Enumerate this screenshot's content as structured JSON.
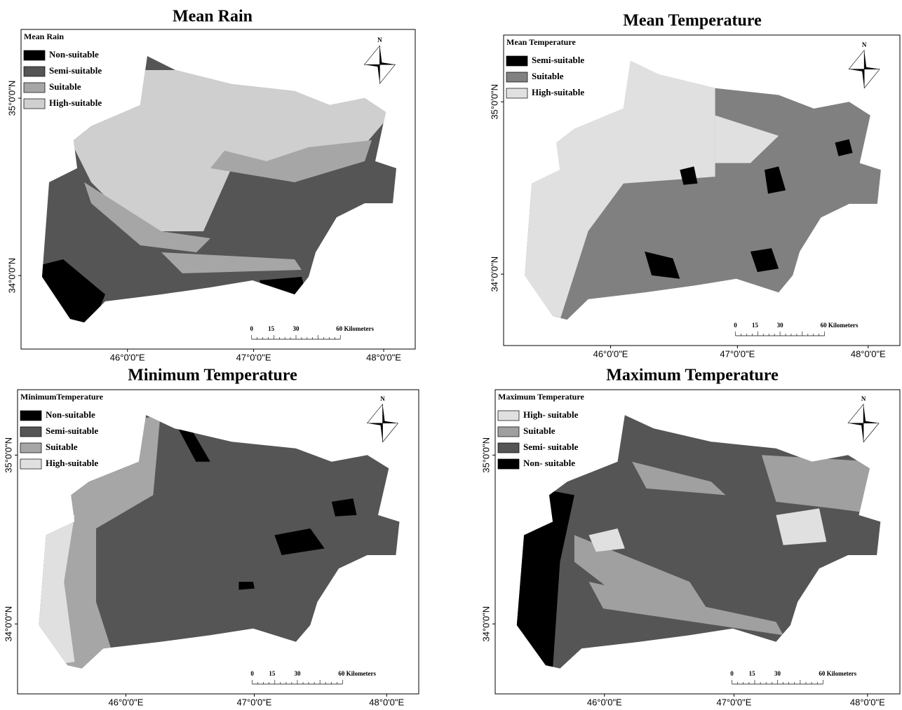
{
  "panels": [
    {
      "title": "Mean Rain",
      "legend": {
        "title": "Mean Rain",
        "items": [
          {
            "label": "Non-suitable",
            "color": "#000000"
          },
          {
            "label": "Semi-suitable",
            "color": "#555555"
          },
          {
            "label": "Suitable",
            "color": "#a6a6a6"
          },
          {
            "label": "High-suitable",
            "color": "#cfcfcf"
          }
        ]
      },
      "x_labels": [
        "46°0'0\"E",
        "47°0'0\"E",
        "48°0'0\"E"
      ],
      "y_labels": [
        "35°0'0\"N",
        "34°0'0\"N"
      ],
      "north": "N",
      "scale": [
        "0",
        "15",
        "30",
        "60 Kilometers"
      ]
    },
    {
      "title": "Mean Temperature",
      "legend": {
        "title": "Mean Temperature",
        "items": [
          {
            "label": "Semi-suitable",
            "color": "#000000"
          },
          {
            "label": "Suitable",
            "color": "#808080"
          },
          {
            "label": "High-suitable",
            "color": "#e0e0e0"
          }
        ]
      },
      "x_labels": [
        "46°0'0\"E",
        "47°0'0\"E",
        "48°0'0\"E"
      ],
      "y_labels": [
        "35°0'0\"N",
        "34°0'0\"N"
      ],
      "north": "N",
      "scale": [
        "0",
        "15",
        "30",
        "60 Kilometers"
      ]
    },
    {
      "title": "Minimum Temperature",
      "legend": {
        "title": "MinimumTemperature",
        "items": [
          {
            "label": "Non-suitable",
            "color": "#000000"
          },
          {
            "label": "Semi-suitable",
            "color": "#555555"
          },
          {
            "label": "Suitable",
            "color": "#a6a6a6"
          },
          {
            "label": "High-suitable",
            "color": "#e0e0e0"
          }
        ]
      },
      "x_labels": [
        "46°0'0\"E",
        "47°0'0\"E",
        "48°0'0\"E"
      ],
      "y_labels": [
        "35°0'0\"N",
        "34°0'0\"N"
      ],
      "north": "N",
      "scale": [
        "0",
        "15",
        "30",
        "60 Kilometers"
      ]
    },
    {
      "title": "Maximum Temperature",
      "legend": {
        "title": "Maximum Temperature",
        "items": [
          {
            "label": "High- suitable",
            "color": "#e0e0e0"
          },
          {
            "label": "Suitable",
            "color": "#a0a0a0"
          },
          {
            "label": "Semi- suitable",
            "color": "#555555"
          },
          {
            "label": "Non- suitable",
            "color": "#000000"
          }
        ]
      },
      "x_labels": [
        "46°0'0\"E",
        "47°0'0\"E",
        "48°0'0\"E"
      ],
      "y_labels": [
        "35°0'0\"N",
        "34°0'0\"N"
      ],
      "north": "N",
      "scale": [
        "0",
        "15",
        "30",
        "60 Kilometers"
      ]
    }
  ]
}
